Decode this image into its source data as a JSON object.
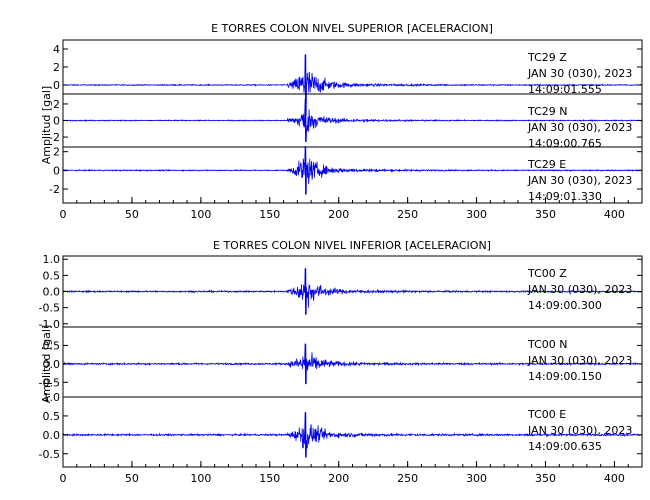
{
  "chart_data": [
    {
      "type": "line",
      "title": "E TORRES COLON NIVEL SUPERIOR [ACELERACION]",
      "ylabel": "Amplitud [gal]",
      "xlabel": "",
      "xlim": [
        0,
        420
      ],
      "xticks": [
        0,
        50,
        100,
        150,
        200,
        250,
        300,
        350,
        400
      ],
      "grid": false,
      "panels": [
        {
          "name": "TC29 Z",
          "annotation": [
            "TC29    Z",
            "JAN 30 (030), 2023",
            "14:09:01.555"
          ],
          "ylim": [
            -1,
            5
          ],
          "yticks": [
            -2,
            0,
            2,
            4
          ],
          "event_start": 163,
          "peak_time": 176,
          "peak_amplitude": 3.4,
          "noise": 0.05
        },
        {
          "name": "TC29 N",
          "annotation": [
            "TC29    N",
            "JAN 30 (030), 2023",
            "14:09:00.765"
          ],
          "ylim": [
            -3.2,
            3.2
          ],
          "yticks": [
            -2,
            0,
            2,
            4
          ],
          "event_start": 163,
          "peak_time": 176,
          "peak_amplitude": 2.6,
          "noise": 0.05
        },
        {
          "name": "TC29 E",
          "annotation": [
            "TC29    E",
            "JAN 30 (030), 2023",
            "14:09:01.330"
          ],
          "ylim": [
            -3.5,
            2.5
          ],
          "yticks": [
            -2,
            0,
            2
          ],
          "event_start": 163,
          "peak_time": 176,
          "peak_amplitude": 2.6,
          "noise": 0.05
        }
      ]
    },
    {
      "type": "line",
      "title": "E TORRES COLON NIVEL INFERIOR [ACELERACION]",
      "ylabel": "Amplitud [gal]",
      "xlabel": "",
      "xlim": [
        0,
        420
      ],
      "xticks": [
        0,
        50,
        100,
        150,
        200,
        250,
        300,
        350,
        400
      ],
      "grid": false,
      "panels": [
        {
          "name": "TC00 Z",
          "annotation": [
            "TC00    Z",
            "JAN 30 (030), 2023",
            "14:09:00.300"
          ],
          "ylim": [
            -1.1,
            1.1
          ],
          "yticks": [
            -1.0,
            -0.5,
            0.0,
            0.5,
            1.0
          ],
          "yticklabels": [
            "-1.0",
            "-0.5",
            "0.0",
            "0.5",
            "1.0"
          ],
          "event_start": 163,
          "peak_time": 176,
          "peak_amplitude": 0.72,
          "noise": 0.02
        },
        {
          "name": "TC00 N",
          "annotation": [
            "TC00    N",
            "JAN 30 (030), 2023",
            "14:09:00.150"
          ],
          "ylim": [
            -0.9,
            1.0
          ],
          "yticks": [
            -0.5,
            0.0,
            0.5
          ],
          "yticklabels": [
            "-0.5",
            "0.0",
            "0.5"
          ],
          "event_start": 163,
          "peak_time": 176,
          "peak_amplitude": 0.55,
          "noise": 0.02
        },
        {
          "name": "TC00 E",
          "annotation": [
            "TC00    E",
            "JAN 30 (030), 2023",
            "14:09:00.635"
          ],
          "ylim": [
            -0.85,
            1.0
          ],
          "yticks": [
            -0.5,
            0.0,
            0.5,
            1.0
          ],
          "yticklabels": [
            "-0.5",
            "0.0",
            "0.5",
            "1.0"
          ],
          "event_start": 163,
          "peak_time": 176,
          "peak_amplitude": 0.6,
          "noise": 0.02
        }
      ]
    }
  ],
  "colors": {
    "trace": "#0000ee",
    "axis": "#000000",
    "background": "#ffffff"
  }
}
